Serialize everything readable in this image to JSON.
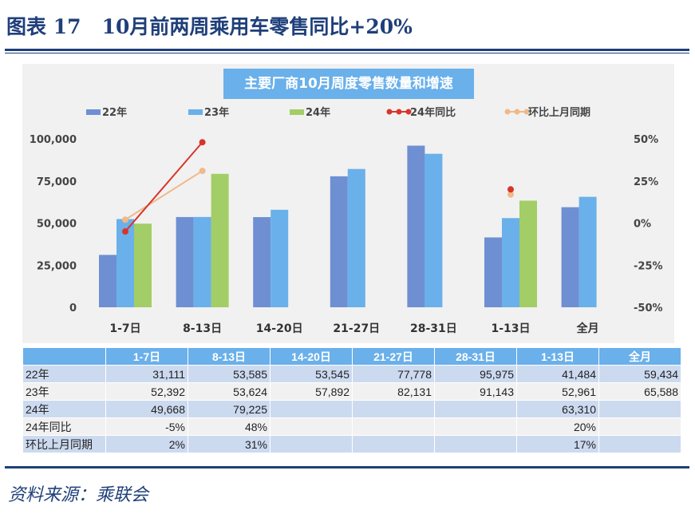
{
  "figure_title": "图表 17   10月前两周乘用车零售同比+20%",
  "source": "资料来源：乘联会",
  "colors": {
    "y22": "#6f8fd3",
    "y23": "#6ab0ea",
    "y24": "#a3cd66",
    "yoy": "#d8352a",
    "mom": "#f0b98a"
  },
  "chart_data": {
    "type": "bar",
    "title": "主要厂商10月周度零售数量和增速",
    "categories": [
      "1-7日",
      "8-13日",
      "14-20日",
      "21-27日",
      "28-31日",
      "1-13日",
      "全月"
    ],
    "series": [
      {
        "name": "22年",
        "type": "bar",
        "values": [
          31111,
          53585,
          53545,
          77778,
          95975,
          41484,
          59434
        ]
      },
      {
        "name": "23年",
        "type": "bar",
        "values": [
          52392,
          53624,
          57892,
          82131,
          91143,
          52961,
          65588
        ]
      },
      {
        "name": "24年",
        "type": "bar",
        "values": [
          49668,
          79225,
          null,
          null,
          null,
          63310,
          null
        ]
      },
      {
        "name": "24年同比",
        "type": "line",
        "axis": "right",
        "values": [
          -5,
          48,
          null,
          null,
          null,
          20,
          null
        ]
      },
      {
        "name": "环比上月同期",
        "type": "line",
        "axis": "right",
        "values": [
          2,
          31,
          null,
          null,
          null,
          17,
          null
        ]
      }
    ],
    "ylim": [
      0,
      100000
    ],
    "yticks": [
      "0",
      "25,000",
      "50,000",
      "75,000",
      "100,000"
    ],
    "y2lim": [
      -50,
      50
    ],
    "y2ticks": [
      "-50%",
      "-25%",
      "0%",
      "25%",
      "50%"
    ],
    "legend": "top",
    "grid": false
  },
  "table": {
    "header": [
      "",
      "1-7日",
      "8-13日",
      "14-20日",
      "21-27日",
      "28-31日",
      "1-13日",
      "全月"
    ],
    "rows": [
      [
        "22年",
        "31,111",
        "53,585",
        "53,545",
        "77,778",
        "95,975",
        "41,484",
        "59,434"
      ],
      [
        "23年",
        "52,392",
        "53,624",
        "57,892",
        "82,131",
        "91,143",
        "52,961",
        "65,588"
      ],
      [
        "24年",
        "49,668",
        "79,225",
        "",
        "",
        "",
        "63,310",
        ""
      ],
      [
        "24年同比",
        "-5%",
        "48%",
        "",
        "",
        "",
        "20%",
        ""
      ],
      [
        "环比上月同期",
        "2%",
        "31%",
        "",
        "",
        "",
        "17%",
        ""
      ]
    ]
  }
}
